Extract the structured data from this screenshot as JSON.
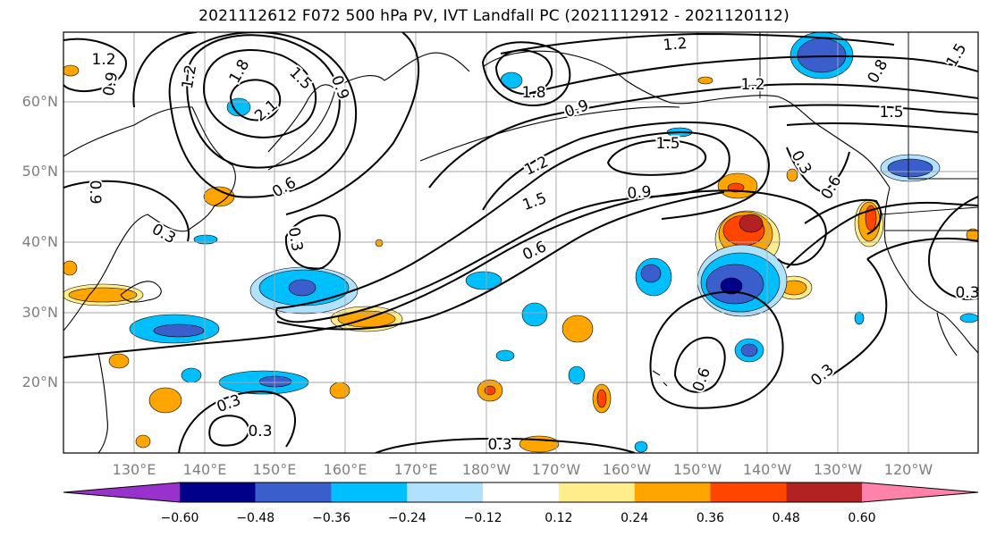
{
  "title": "2021112612 F072 500 hPa PV, IVT Landfall PC (2021112912 - 2021120112)",
  "lat_labels": [
    "60°N",
    "50°N",
    "40°N",
    "30°N",
    "20°N"
  ],
  "lon_labels": [
    "130°E",
    "140°E",
    "150°E",
    "160°E",
    "170°E",
    "180°W",
    "170°W",
    "160°W",
    "150°W",
    "140°W",
    "130°W",
    "120°W"
  ],
  "contour_labels": [
    "1.2",
    "0.9",
    "1.2",
    "1.8",
    "1.5",
    "0.9",
    "2.1",
    "0.6",
    "0.9",
    "0.3",
    "0.3",
    "1.8",
    "1.2",
    "0.9",
    "1.2",
    "1.5",
    "1.5",
    "1.2",
    "1.5",
    "0.9",
    "0.6",
    "0.3",
    "0.6",
    "0.6",
    "0.3",
    "0.3",
    "0.3",
    "0.3",
    "0.3",
    "0.8",
    "1.5"
  ],
  "colorbar": {
    "colors": [
      "#9932CC",
      "#00008B",
      "#3A5FCD",
      "#00BFFF",
      "#B0E2FF",
      "#FFFFFF",
      "#FFEC8B",
      "#FFA500",
      "#FF4500",
      "#B22222",
      "#FF82AB"
    ],
    "tick_labels": [
      "−0.60",
      "−0.48",
      "−0.36",
      "−0.24",
      "−0.12",
      "0.12",
      "0.24",
      "0.36",
      "0.48",
      "0.60"
    ]
  },
  "anomaly_colors": {
    "pos_light": "#FFEC8B",
    "pos": "#FFA500",
    "pos_strong": "#FF4500",
    "pos_max": "#B22222",
    "neg_light": "#B0E2FF",
    "neg": "#00BFFF",
    "neg_strong": "#3A5FCD",
    "neg_max": "#00008B"
  }
}
